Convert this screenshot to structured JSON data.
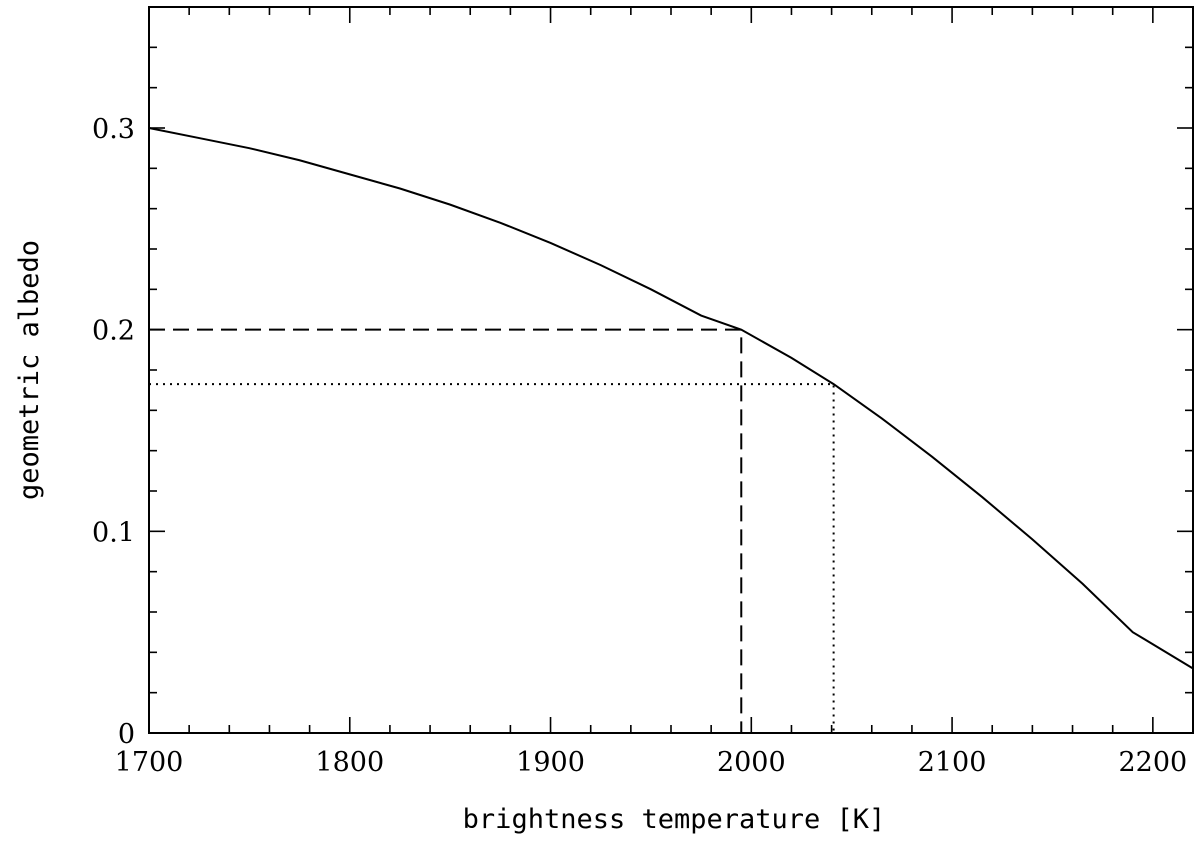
{
  "chart_data": {
    "type": "line",
    "title": "",
    "xlabel": "brightness temperature [K]",
    "ylabel": "geometric albedo",
    "xlim": [
      1700,
      2220
    ],
    "ylim": [
      0,
      0.3
    ],
    "x_ticks": [
      1700,
      1800,
      1900,
      2000,
      2100,
      2200
    ],
    "x_tick_labels": [
      "1700",
      "1800",
      "1900",
      "2000",
      "2100",
      "2200"
    ],
    "y_ticks": [
      0,
      0.1,
      0.2,
      0.3
    ],
    "y_tick_labels": [
      "0",
      "0.1",
      "0.2",
      "0.3"
    ],
    "grid": false,
    "legend": "none",
    "series": [
      {
        "style": "solid",
        "x": [
          1700,
          1725,
          1750,
          1775,
          1800,
          1825,
          1850,
          1875,
          1900,
          1925,
          1950,
          1975,
          1995,
          2020,
          2041,
          2065,
          2090,
          2115,
          2140,
          2165,
          2190,
          2220
        ],
        "y": [
          0.3,
          0.295,
          0.29,
          0.284,
          0.277,
          0.27,
          0.262,
          0.253,
          0.243,
          0.232,
          0.22,
          0.207,
          0.2,
          0.186,
          0.173,
          0.156,
          0.137,
          0.117,
          0.096,
          0.074,
          0.05,
          0.032
        ]
      }
    ],
    "reference_lines": [
      {
        "style": "dashed",
        "x": [
          1700,
          1995,
          1995
        ],
        "y": [
          0.2,
          0.2,
          0
        ]
      },
      {
        "style": "dotted",
        "x": [
          1700,
          2041,
          2041
        ],
        "y": [
          0.173,
          0.173,
          0
        ]
      }
    ]
  }
}
